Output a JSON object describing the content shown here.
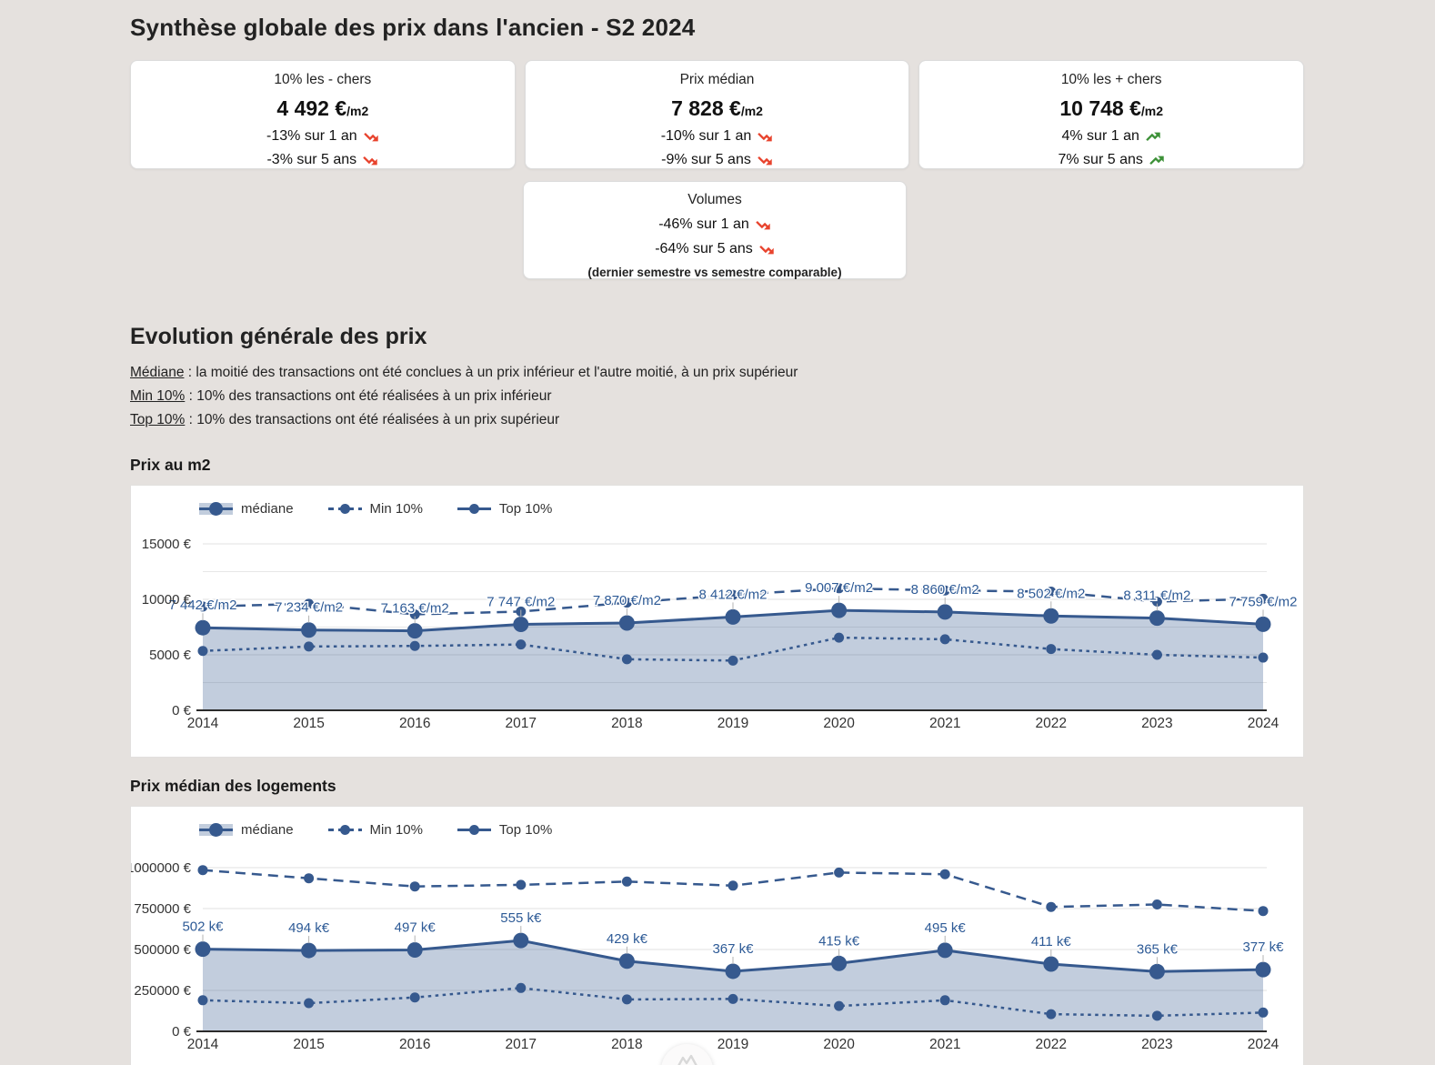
{
  "page": {
    "title": "Synthèse globale des prix dans l'ancien - S2 2024"
  },
  "summary_cards": [
    {
      "title": "10% les - chers",
      "value": "4 492 €",
      "unit": "/m2",
      "changes": [
        {
          "text": "-13% sur 1 an",
          "direction": "down"
        },
        {
          "text": "-3% sur 5 ans",
          "direction": "down"
        }
      ]
    },
    {
      "title": "Prix médian",
      "value": "7 828 €",
      "unit": "/m2",
      "changes": [
        {
          "text": "-10% sur 1 an",
          "direction": "down"
        },
        {
          "text": "-9% sur 5 ans",
          "direction": "down"
        }
      ]
    },
    {
      "title": "10% les + chers",
      "value": "10 748 €",
      "unit": "/m2",
      "changes": [
        {
          "text": "4% sur 1 an",
          "direction": "up"
        },
        {
          "text": "7% sur 5 ans",
          "direction": "up"
        }
      ]
    }
  ],
  "volumes_card": {
    "title": "Volumes",
    "changes": [
      {
        "text": "-46% sur 1 an",
        "direction": "down"
      },
      {
        "text": "-64% sur 5 ans",
        "direction": "down"
      }
    ],
    "note": "(dernier semestre vs semestre comparable)"
  },
  "section": {
    "title": "Evolution générale des prix",
    "definitions": [
      {
        "term": "Médiane",
        "text": " : la moitié des transactions ont été conclues à un prix inférieur et l'autre moitié, à un prix supérieur"
      },
      {
        "term": "Min 10%",
        "text": " : 10% des transactions ont été réalisées à un prix inférieur"
      },
      {
        "term": "Top 10%",
        "text": " : 10% des transactions ont été réalisées à un prix supérieur"
      }
    ]
  },
  "colors": {
    "line_blue": "#36598e",
    "label_blue": "#2d5a96",
    "area_fill": "rgba(54,89,142,0.3)",
    "negative_red": "#e8432d",
    "positive_green": "#3d9138",
    "grid": "#e0e0e0",
    "axis": "#2b2b2b",
    "page_bg": "#e5e1de"
  },
  "chart_data": [
    {
      "type": "area",
      "title": "Prix au m2",
      "legend": [
        "médiane",
        "Min 10%",
        "Top 10%"
      ],
      "legend_position": "top-left",
      "grid": true,
      "categories": [
        "2014",
        "2015",
        "2016",
        "2017",
        "2018",
        "2019",
        "2020",
        "2021",
        "2022",
        "2023",
        "2024"
      ],
      "ylim": [
        0,
        15000
      ],
      "yticks": [
        {
          "value": 15000,
          "label": "15000 €"
        },
        {
          "value": 10000,
          "label": "10000 €"
        },
        {
          "value": 5000,
          "label": "5000 €"
        },
        {
          "value": 0,
          "label": "0 €"
        }
      ],
      "grid_minor": [
        12500,
        7500,
        2500
      ],
      "series": [
        {
          "name": "médiane",
          "values": [
            7442,
            7234,
            7163,
            7747,
            7870,
            8412,
            9007,
            8860,
            8502,
            8311,
            7759
          ],
          "labels": [
            "7 442 €/m2",
            "7 234 €/m2",
            "7 163 €/m2",
            "7 747 €/m2",
            "7 870 €/m2",
            "8 412 €/m2",
            "9 007 €/m2",
            "8 860 €/m2",
            "8 502 €/m2",
            "8 311 €/m2",
            "7 759 €/m2"
          ]
        },
        {
          "name": "Min 10%",
          "values": [
            5350,
            5750,
            5800,
            5930,
            4600,
            4480,
            6550,
            6400,
            5520,
            5000,
            4750
          ]
        },
        {
          "name": "Top 10%",
          "values": [
            9350,
            9600,
            8650,
            8900,
            9700,
            10400,
            11000,
            10800,
            10700,
            9800,
            10050
          ]
        }
      ]
    },
    {
      "type": "area",
      "title": "Prix médian des logements",
      "legend": [
        "médiane",
        "Min 10%",
        "Top 10%"
      ],
      "legend_position": "top-left",
      "grid": true,
      "categories": [
        "2014",
        "2015",
        "2016",
        "2017",
        "2018",
        "2019",
        "2020",
        "2021",
        "2022",
        "2023",
        "2024"
      ],
      "ylim": [
        0,
        1000000
      ],
      "yticks": [
        {
          "value": 1000000,
          "label": "1000000 €"
        },
        {
          "value": 750000,
          "label": "750000 €"
        },
        {
          "value": 500000,
          "label": "500000 €"
        },
        {
          "value": 250000,
          "label": "250000 €"
        },
        {
          "value": 0,
          "label": "0 €"
        }
      ],
      "grid_minor": [],
      "series": [
        {
          "name": "médiane",
          "values": [
            502000,
            494000,
            497000,
            555000,
            429000,
            367000,
            415000,
            495000,
            411000,
            365000,
            377000
          ],
          "labels": [
            "502 k€",
            "494 k€",
            "497 k€",
            "555 k€",
            "429 k€",
            "367 k€",
            "415 k€",
            "495 k€",
            "411 k€",
            "365 k€",
            "377 k€"
          ]
        },
        {
          "name": "Min 10%",
          "values": [
            190000,
            172000,
            207000,
            265000,
            195000,
            198000,
            155000,
            190000,
            105000,
            95000,
            115000
          ]
        },
        {
          "name": "Top 10%",
          "values": [
            985000,
            935000,
            885000,
            895000,
            915000,
            890000,
            970000,
            960000,
            760000,
            775000,
            735000
          ]
        }
      ]
    }
  ]
}
